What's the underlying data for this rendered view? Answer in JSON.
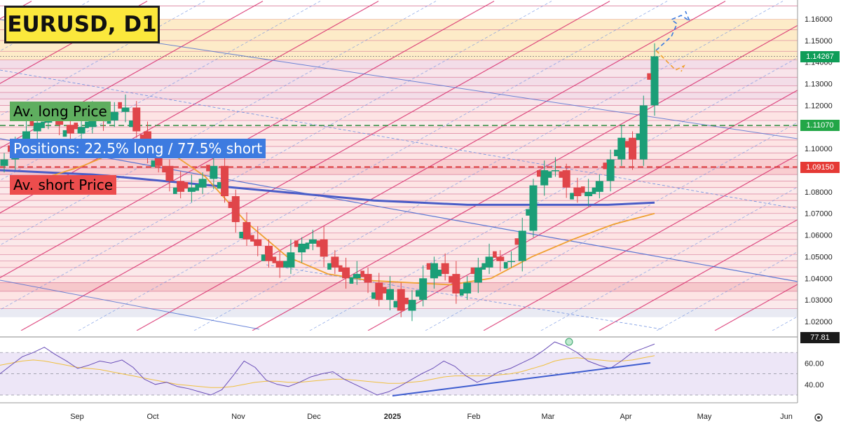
{
  "header": {
    "title": "EURUSD, D1"
  },
  "annotations": {
    "av_long": "Av. long Price",
    "positions": "Positions: 22.5% long / 77.5% short",
    "av_short": "Av. short Price"
  },
  "price_tags": {
    "last": "1.14267",
    "long": "1.11070",
    "short": "1.09150",
    "rsi_last": "77.81"
  },
  "colors": {
    "up": "#1b9e77",
    "down": "#e0454a",
    "last_tag": "#0f9d58",
    "long_tag": "#22a647",
    "short_tag": "#e53935",
    "ma_long": "#4a5cc7",
    "ma_short": "#f0a030",
    "channel": "#d9316f"
  },
  "chart_data": {
    "type": "candlestick",
    "title": "EURUSD, D1",
    "y_axis_ticks": [
      "1.02000",
      "1.03000",
      "1.04000",
      "1.05000",
      "1.06000",
      "1.07000",
      "1.08000",
      "1.09000",
      "1.10000",
      "1.11000",
      "1.12000",
      "1.13000",
      "1.14000",
      "1.15000",
      "1.16000"
    ],
    "x_axis_ticks": [
      "Sep",
      "Oct",
      "Nov",
      "Dec",
      "2025",
      "Feb",
      "Mar",
      "Apr",
      "May",
      "Jun"
    ],
    "ylim": [
      1.015,
      1.168
    ],
    "levels": {
      "av_long_price": 1.1107,
      "av_short_price": 1.0915,
      "last_price": 1.14267
    },
    "close_path": [
      {
        "date": "Aug",
        "close": 1.095
      },
      {
        "date": "Aug",
        "close": 1.101
      },
      {
        "date": "Aug",
        "close": 1.108
      },
      {
        "date": "Aug",
        "close": 1.112
      },
      {
        "date": "Aug",
        "close": 1.114
      },
      {
        "date": "Sep",
        "close": 1.111
      },
      {
        "date": "Sep",
        "close": 1.107
      },
      {
        "date": "Sep",
        "close": 1.11
      },
      {
        "date": "Sep",
        "close": 1.116
      },
      {
        "date": "Sep",
        "close": 1.113
      },
      {
        "date": "Sep",
        "close": 1.117
      },
      {
        "date": "Sep",
        "close": 1.119
      },
      {
        "date": "Oct",
        "close": 1.108
      },
      {
        "date": "Oct",
        "close": 1.098
      },
      {
        "date": "Oct",
        "close": 1.092
      },
      {
        "date": "Oct",
        "close": 1.085
      },
      {
        "date": "Oct",
        "close": 1.08
      },
      {
        "date": "Oct",
        "close": 1.082
      },
      {
        "date": "Oct",
        "close": 1.086
      },
      {
        "date": "Nov",
        "close": 1.092
      },
      {
        "date": "Nov",
        "close": 1.078
      },
      {
        "date": "Nov",
        "close": 1.066
      },
      {
        "date": "Nov",
        "close": 1.058
      },
      {
        "date": "Nov",
        "close": 1.055
      },
      {
        "date": "Nov",
        "close": 1.048
      },
      {
        "date": "Nov",
        "close": 1.045
      },
      {
        "date": "Dec",
        "close": 1.052
      },
      {
        "date": "Dec",
        "close": 1.056
      },
      {
        "date": "Dec",
        "close": 1.058
      },
      {
        "date": "Dec",
        "close": 1.05
      },
      {
        "date": "Dec",
        "close": 1.045
      },
      {
        "date": "Dec",
        "close": 1.04
      },
      {
        "date": "Dec",
        "close": 1.042
      },
      {
        "date": "Dec",
        "close": 1.038
      },
      {
        "date": "2025",
        "close": 1.03
      },
      {
        "date": "2025",
        "close": 1.035
      },
      {
        "date": "2025",
        "close": 1.025
      },
      {
        "date": "2025",
        "close": 1.03
      },
      {
        "date": "2025",
        "close": 1.04
      },
      {
        "date": "2025",
        "close": 1.047
      },
      {
        "date": "Feb",
        "close": 1.042
      },
      {
        "date": "Feb",
        "close": 1.033
      },
      {
        "date": "Feb",
        "close": 1.038
      },
      {
        "date": "Feb",
        "close": 1.045
      },
      {
        "date": "Feb",
        "close": 1.05
      },
      {
        "date": "Feb",
        "close": 1.048
      },
      {
        "date": "Mar",
        "close": 1.048
      },
      {
        "date": "Mar",
        "close": 1.062
      },
      {
        "date": "Mar",
        "close": 1.083
      },
      {
        "date": "Mar",
        "close": 1.09
      },
      {
        "date": "Mar",
        "close": 1.09
      },
      {
        "date": "Mar",
        "close": 1.082
      },
      {
        "date": "Mar",
        "close": 1.078
      },
      {
        "date": "Mar",
        "close": 1.08
      },
      {
        "date": "Apr",
        "close": 1.085
      },
      {
        "date": "Apr",
        "close": 1.095
      },
      {
        "date": "Apr",
        "close": 1.105
      },
      {
        "date": "Apr",
        "close": 1.095
      },
      {
        "date": "Apr",
        "close": 1.12
      },
      {
        "date": "Apr",
        "close": 1.1427
      }
    ],
    "moving_average_long": [
      1.09,
      1.089,
      1.088,
      1.086,
      1.084,
      1.082,
      1.08,
      1.078,
      1.076,
      1.075,
      1.074,
      1.074,
      1.074,
      1.074,
      1.075
    ],
    "moving_average_short": [
      1.086,
      1.092,
      1.1,
      1.1,
      1.087,
      1.066,
      1.05,
      1.042,
      1.039,
      1.038,
      1.037,
      1.04,
      1.05,
      1.058,
      1.065,
      1.07
    ],
    "rsi": {
      "last": 77.81,
      "ticks": [
        "40.00",
        "60.00"
      ],
      "ylim": [
        26,
        84
      ],
      "values": [
        50,
        58,
        66,
        70,
        75,
        68,
        62,
        55,
        58,
        62,
        60,
        63,
        56,
        45,
        40,
        42,
        38,
        36,
        33,
        30,
        35,
        48,
        62,
        56,
        44,
        40,
        38,
        42,
        47,
        50,
        52,
        45,
        40,
        35,
        30,
        33,
        38,
        44,
        50,
        55,
        62,
        57,
        48,
        42,
        46,
        52,
        55,
        60,
        65,
        72,
        80,
        76,
        70,
        62,
        58,
        55,
        62,
        70,
        74,
        78
      ],
      "signal": [
        58,
        60,
        62,
        63,
        62,
        60,
        58,
        56,
        55,
        54,
        52,
        50,
        48,
        46,
        44,
        42,
        40,
        39,
        38,
        37,
        37,
        38,
        40,
        42,
        43,
        43,
        42,
        42,
        43,
        44,
        45,
        45,
        44,
        43,
        42,
        41,
        41,
        42,
        43,
        45,
        47,
        48,
        48,
        48,
        48,
        49,
        50,
        52,
        55,
        58,
        62,
        64,
        65,
        64,
        63,
        62,
        62,
        63,
        65,
        67
      ]
    },
    "grid": false
  }
}
